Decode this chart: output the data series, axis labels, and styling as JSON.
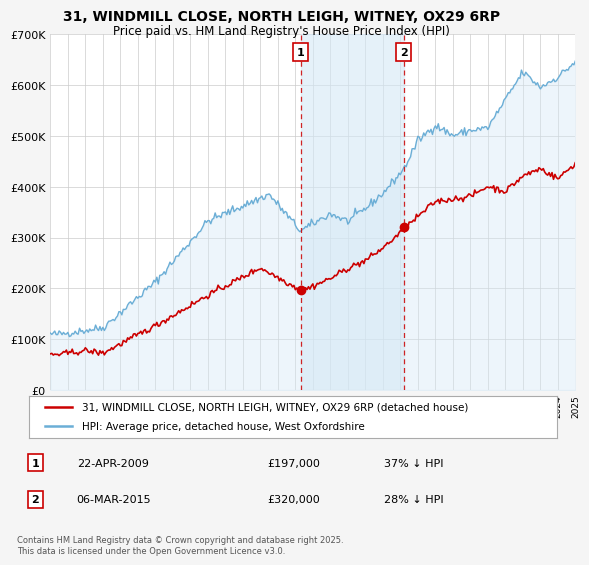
{
  "title": "31, WINDMILL CLOSE, NORTH LEIGH, WITNEY, OX29 6RP",
  "subtitle": "Price paid vs. HM Land Registry's House Price Index (HPI)",
  "legend_property": "31, WINDMILL CLOSE, NORTH LEIGH, WITNEY, OX29 6RP (detached house)",
  "legend_hpi": "HPI: Average price, detached house, West Oxfordshire",
  "footnote": "Contains HM Land Registry data © Crown copyright and database right 2025.\nThis data is licensed under the Open Government Licence v3.0.",
  "sale1_label": "1",
  "sale1_date": "22-APR-2009",
  "sale1_price": "£197,000",
  "sale1_pct": "37% ↓ HPI",
  "sale1_year": 2009.3,
  "sale1_value": 197000,
  "sale2_label": "2",
  "sale2_date": "06-MAR-2015",
  "sale2_price": "£320,000",
  "sale2_pct": "28% ↓ HPI",
  "sale2_year": 2015.18,
  "sale2_value": 320000,
  "property_color": "#cc0000",
  "hpi_color": "#6baed6",
  "hpi_fill_color": "#d4e8f5",
  "background_color": "#f5f5f5",
  "plot_bg_color": "#ffffff",
  "ylim": [
    0,
    700000
  ],
  "yticks": [
    0,
    100000,
    200000,
    300000,
    400000,
    500000,
    600000,
    700000
  ],
  "xmin": 1995,
  "xmax": 2025
}
